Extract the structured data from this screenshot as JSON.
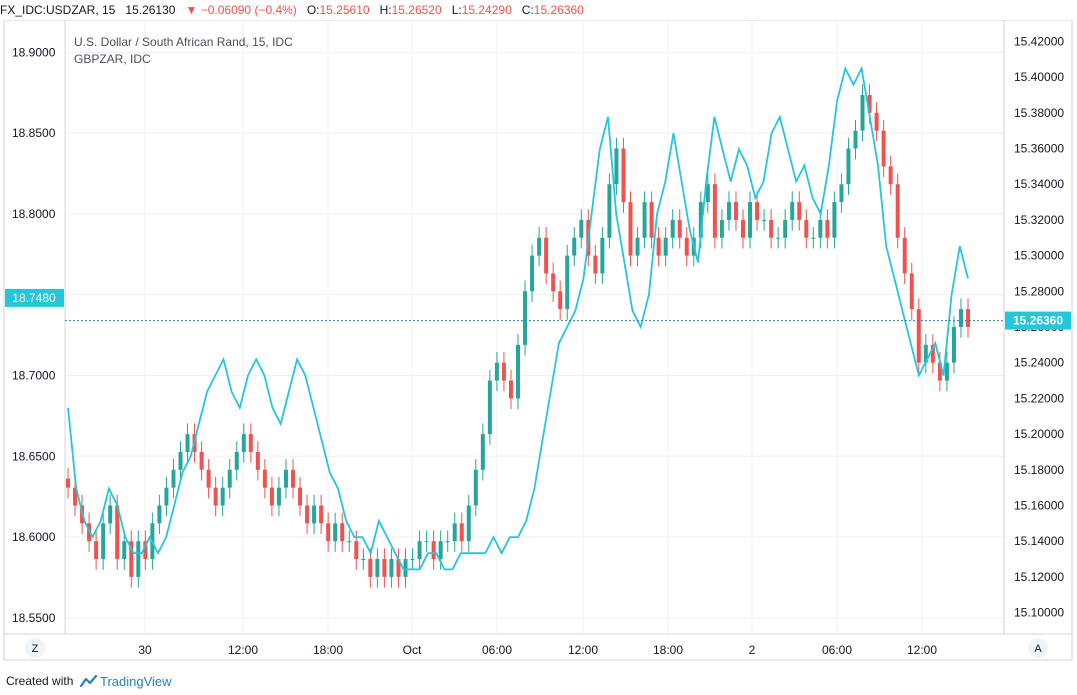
{
  "header": {
    "symbol": "FX_IDC:USDZAR, 15",
    "last": "15.26130",
    "arrow": "▼",
    "change": "−0.06090 (−0.4%)",
    "o_label": "O:",
    "o_val": "15.25610",
    "h_label": "H:",
    "h_val": "15.26520",
    "l_label": "L:",
    "l_val": "15.24290",
    "c_label": "C:",
    "c_val": "15.26360"
  },
  "legend": {
    "main": "U.S. Dollar / South African Rand, 15, IDC",
    "compare": "GBPZAR, IDC"
  },
  "footer": {
    "created": "Created with",
    "brand": "TradingView"
  },
  "buttons": {
    "left": "Z",
    "right": "A"
  },
  "colors": {
    "up": "#26a69a",
    "down": "#ef5350",
    "compare_line": "#26c6da",
    "grid": "#eef0f3",
    "badge": "#26c6da",
    "price_line": "#2a7fbd"
  },
  "chart_data": {
    "type": "line",
    "series": [
      {
        "name": "U.S. Dollar / South African Rand, 15, IDC",
        "style": "candlestick",
        "axis": "right",
        "approx_close": [
          15.17,
          15.16,
          15.15,
          15.14,
          15.13,
          15.15,
          15.16,
          15.13,
          15.14,
          15.12,
          15.14,
          15.13,
          15.15,
          15.16,
          15.17,
          15.18,
          15.19,
          15.2,
          15.19,
          15.18,
          15.17,
          15.16,
          15.17,
          15.18,
          15.19,
          15.2,
          15.19,
          15.18,
          15.17,
          15.16,
          15.17,
          15.18,
          15.17,
          15.16,
          15.15,
          15.16,
          15.15,
          15.14,
          15.15,
          15.14,
          15.14,
          15.13,
          15.13,
          15.12,
          15.13,
          15.12,
          15.13,
          15.12,
          15.13,
          15.13,
          15.14,
          15.14,
          15.13,
          15.14,
          15.14,
          15.15,
          15.14,
          15.16,
          15.18,
          15.2,
          15.23,
          15.24,
          15.23,
          15.22,
          15.25,
          15.28,
          15.3,
          15.31,
          15.29,
          15.28,
          15.27,
          15.3,
          15.31,
          15.32,
          15.3,
          15.29,
          15.31,
          15.34,
          15.36,
          15.33,
          15.3,
          15.31,
          15.33,
          15.31,
          15.3,
          15.31,
          15.32,
          15.31,
          15.3,
          15.31,
          15.33,
          15.34,
          15.31,
          15.32,
          15.33,
          15.32,
          15.31,
          15.33,
          15.32,
          15.32,
          15.31,
          15.31,
          15.32,
          15.33,
          15.32,
          15.31,
          15.31,
          15.32,
          15.31,
          15.33,
          15.34,
          15.36,
          15.37,
          15.39,
          15.38,
          15.37,
          15.35,
          15.34,
          15.31,
          15.29,
          15.27,
          15.24,
          15.25,
          15.24,
          15.23,
          15.24,
          15.26,
          15.27,
          15.26
        ]
      },
      {
        "name": "GBPZAR, IDC",
        "style": "line",
        "axis": "left",
        "approx_close": [
          18.68,
          18.63,
          18.61,
          18.6,
          18.61,
          18.63,
          18.62,
          18.6,
          18.59,
          18.59,
          18.6,
          18.59,
          18.6,
          18.62,
          18.64,
          18.65,
          18.67,
          18.69,
          18.7,
          18.71,
          18.69,
          18.68,
          18.7,
          18.71,
          18.7,
          18.68,
          18.67,
          18.69,
          18.71,
          18.7,
          18.68,
          18.66,
          18.64,
          18.63,
          18.61,
          18.6,
          18.6,
          18.59,
          18.61,
          18.6,
          18.59,
          18.58,
          18.58,
          18.58,
          18.59,
          18.59,
          18.58,
          18.58,
          18.59,
          18.59,
          18.59,
          18.59,
          18.6,
          18.59,
          18.6,
          18.6,
          18.61,
          18.63,
          18.66,
          18.69,
          18.72,
          18.73,
          18.74,
          18.76,
          18.8,
          18.84,
          18.86,
          18.8,
          18.77,
          18.74,
          18.73,
          18.75,
          18.8,
          18.82,
          18.85,
          18.82,
          18.79,
          18.77,
          18.82,
          18.86,
          18.84,
          18.82,
          18.84,
          18.83,
          18.81,
          18.82,
          18.85,
          18.86,
          18.84,
          18.82,
          18.83,
          18.81,
          18.8,
          18.83,
          18.87,
          18.89,
          18.88,
          18.89,
          18.86,
          18.83,
          18.78,
          18.76,
          18.74,
          18.72,
          18.7,
          18.71,
          18.72,
          18.7,
          18.75,
          18.78,
          18.76
        ]
      }
    ],
    "x_tick_labels": [
      "30",
      "12:00",
      "18:00",
      "Oct",
      "06:00",
      "12:00",
      "18:00",
      "2",
      "06:00",
      "12:00"
    ],
    "left_axis": {
      "tick_labels": [
        "18.9000",
        "18.8500",
        "18.8000",
        "18.7500",
        "18.7000",
        "18.6500",
        "18.6000",
        "18.5500"
      ],
      "ylim": [
        18.54,
        18.92
      ],
      "marker": "18.7480"
    },
    "right_axis": {
      "tick_labels": [
        "15.42000",
        "15.40000",
        "15.38000",
        "15.36000",
        "15.34000",
        "15.32000",
        "15.30000",
        "15.28000",
        "15.26000",
        "15.24000",
        "15.22000",
        "15.20000",
        "15.18000",
        "15.16000",
        "15.14000",
        "15.12000",
        "15.10000"
      ],
      "ylim": [
        15.088,
        15.432
      ],
      "marker": "15.26360"
    },
    "grid": true,
    "legend_placement": "top-left"
  }
}
